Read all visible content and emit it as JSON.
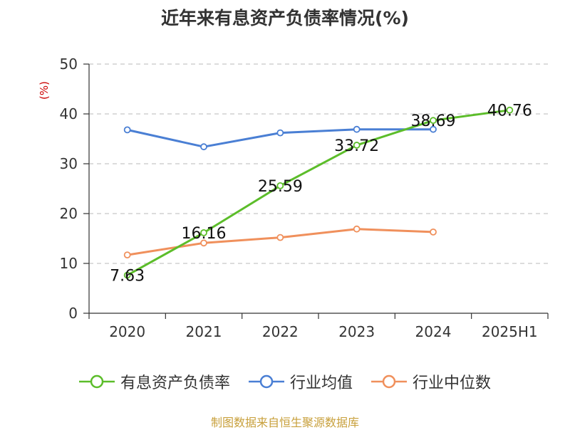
{
  "chart_data": {
    "type": "line",
    "title": "近年来有息资产负债率情况(%)",
    "ylabel": "(%)",
    "xlabel": "",
    "categories": [
      "2020",
      "2021",
      "2022",
      "2023",
      "2024",
      "2025H1"
    ],
    "ylim": [
      0,
      50
    ],
    "yticks": [
      0,
      10,
      20,
      30,
      40,
      50
    ],
    "grid": true,
    "legend_position": "bottom",
    "series": [
      {
        "name": "有息资产负债率",
        "color": "#5cbd2a",
        "values": [
          7.63,
          16.16,
          25.59,
          33.72,
          38.69,
          40.76
        ],
        "data_labels": [
          "7.63",
          "16.16",
          "25.59",
          "33.72",
          "38.69",
          "40.76"
        ]
      },
      {
        "name": "行业均值",
        "color": "#4a7fd4",
        "values": [
          36.8,
          33.4,
          36.2,
          36.9,
          36.9,
          null
        ]
      },
      {
        "name": "行业中位数",
        "color": "#f0905c",
        "values": [
          11.7,
          14.1,
          15.2,
          16.9,
          16.3,
          null
        ]
      }
    ]
  },
  "source_text": "制图数据来自恒生聚源数据库"
}
